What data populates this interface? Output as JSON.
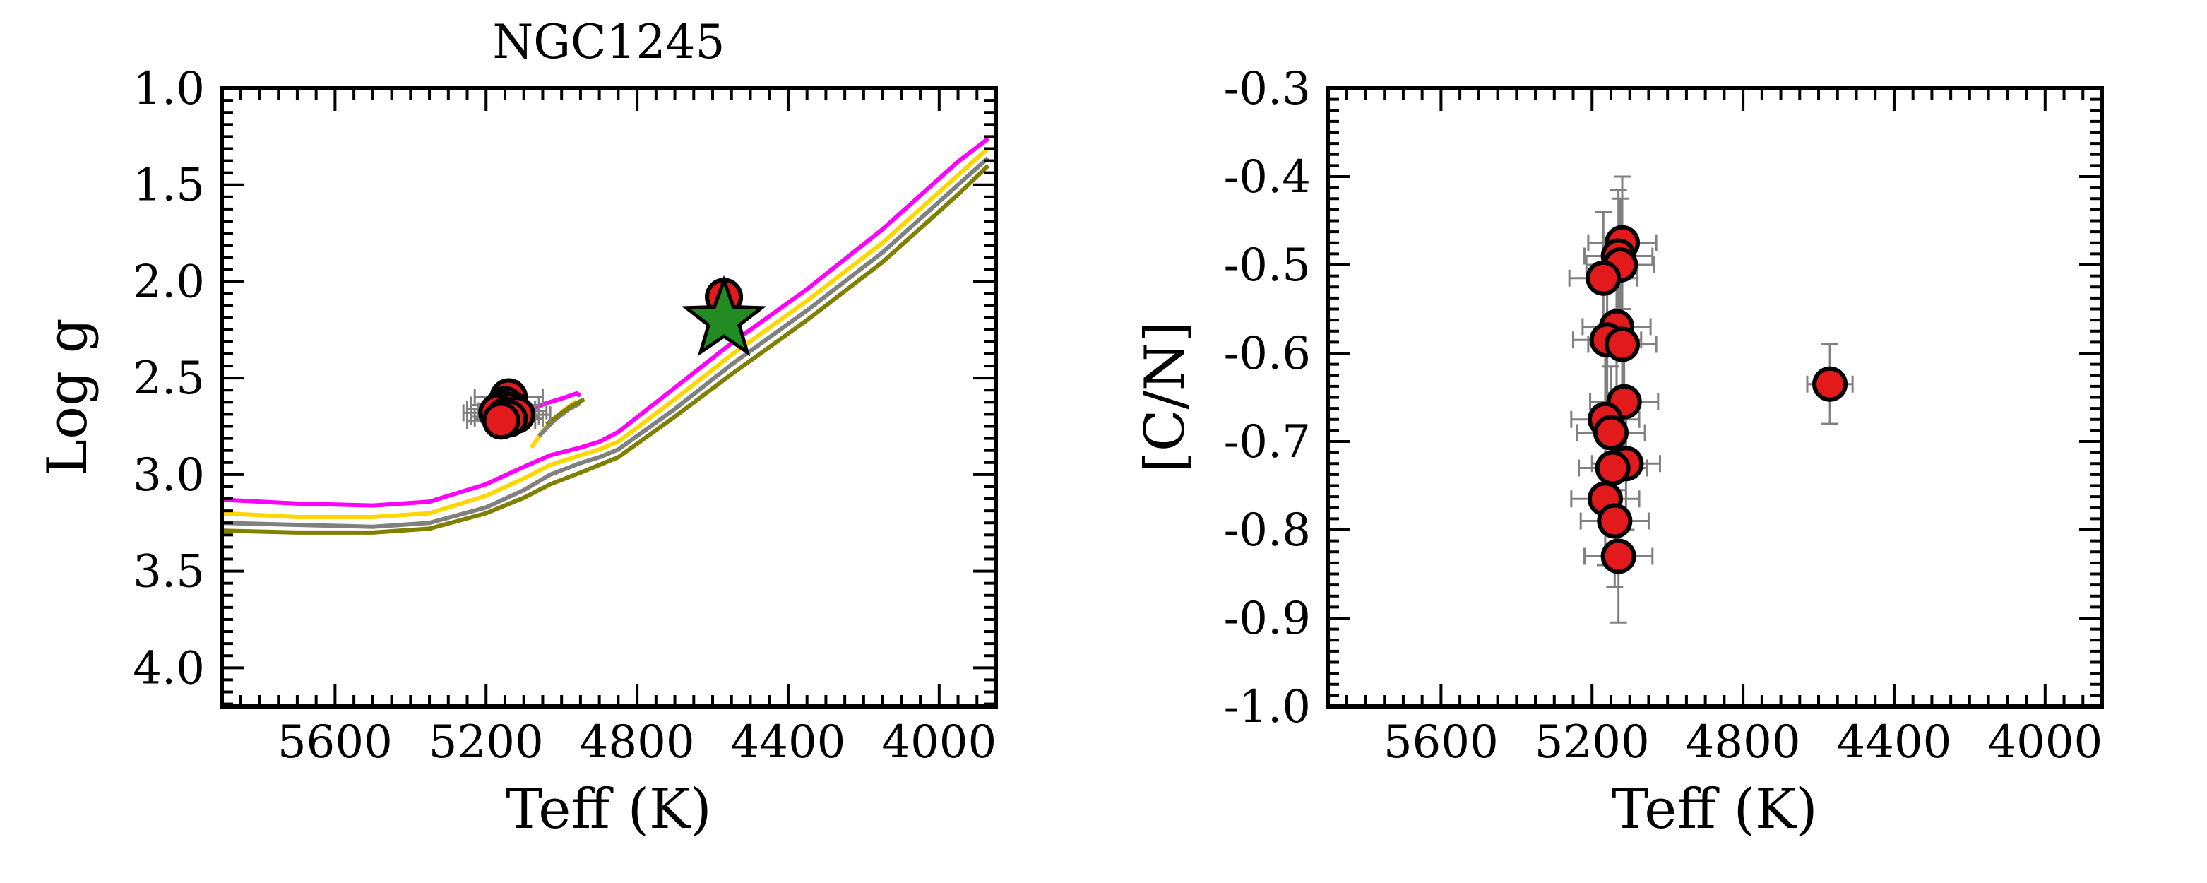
{
  "colors": {
    "background": "#ffffff",
    "axes": "#000000",
    "marker_fill": "#e31a1c",
    "marker_edge": "#000000",
    "errorbar": "#808080",
    "star_fill": "#228b22",
    "isochrone_magenta": "#ff00ff",
    "isochrone_gold": "#ffd700",
    "isochrone_gray": "#808080",
    "isochrone_olive": "#808000"
  },
  "chart_data": [
    {
      "type": "scatter",
      "title": "NGC1245",
      "xlabel": "Teff (K)",
      "ylabel": "Log g",
      "xlim": [
        5900,
        3850
      ],
      "ylim": [
        4.2,
        1.0
      ],
      "x_ticks": [
        5600,
        5200,
        4800,
        4400,
        4000
      ],
      "x_tick_labels": [
        "5600",
        "5200",
        "4800",
        "4400",
        "4000"
      ],
      "y_ticks": [
        1.0,
        1.5,
        2.0,
        2.5,
        3.0,
        3.5,
        4.0
      ],
      "y_tick_labels": [
        "1.0",
        "1.5",
        "2.0",
        "2.5",
        "3.0",
        "3.5",
        "4.0"
      ],
      "grid": false,
      "isochrones": [
        {
          "color": "magenta",
          "x": [
            5900,
            5700,
            5500,
            5350,
            5200,
            5100,
            5030,
            4950,
            4900,
            4850,
            4700,
            4550,
            4350,
            4150,
            3950,
            3870
          ],
          "y": [
            3.13,
            3.15,
            3.16,
            3.14,
            3.05,
            2.96,
            2.9,
            2.86,
            2.83,
            2.78,
            2.55,
            2.32,
            2.04,
            1.73,
            1.38,
            1.26
          ]
        },
        {
          "color": "gold",
          "x": [
            5900,
            5700,
            5500,
            5350,
            5200,
            5100,
            5030,
            4950,
            4900,
            4850,
            4700,
            4550,
            4350,
            4150,
            3950,
            3870
          ],
          "y": [
            3.2,
            3.22,
            3.22,
            3.2,
            3.11,
            3.02,
            2.95,
            2.9,
            2.87,
            2.83,
            2.61,
            2.38,
            2.1,
            1.8,
            1.45,
            1.31
          ]
        },
        {
          "color": "gray",
          "x": [
            5900,
            5700,
            5500,
            5350,
            5200,
            5100,
            5030,
            4950,
            4900,
            4850,
            4700,
            4550,
            4350,
            4150,
            3950,
            3870
          ],
          "y": [
            3.25,
            3.26,
            3.27,
            3.25,
            3.17,
            3.08,
            3.0,
            2.94,
            2.91,
            2.87,
            2.66,
            2.43,
            2.15,
            1.85,
            1.5,
            1.36
          ]
        },
        {
          "color": "olive",
          "x": [
            5900,
            5700,
            5500,
            5350,
            5200,
            5100,
            5030,
            4950,
            4900,
            4850,
            4700,
            4550,
            4350,
            4150,
            3950,
            3870
          ],
          "y": [
            3.29,
            3.3,
            3.3,
            3.28,
            3.2,
            3.12,
            3.05,
            2.99,
            2.95,
            2.91,
            2.7,
            2.48,
            2.2,
            1.9,
            1.55,
            1.4
          ]
        }
      ],
      "red_clump_loops": [
        {
          "color": "magenta",
          "x": [
            5090,
            5040,
            4990,
            4960,
            4950
          ],
          "y": [
            2.67,
            2.63,
            2.6,
            2.58,
            2.59
          ]
        },
        {
          "color": "gold",
          "x": [
            5080,
            5040,
            4990,
            4960
          ],
          "y": [
            2.86,
            2.75,
            2.66,
            2.62
          ]
        },
        {
          "color": "gray",
          "x": [
            5060,
            5020,
            4980,
            4950
          ],
          "y": [
            2.8,
            2.72,
            2.66,
            2.63
          ]
        },
        {
          "color": "olive",
          "x": [
            5040,
            5000,
            4970,
            4940
          ],
          "y": [
            2.74,
            2.68,
            2.64,
            2.61
          ]
        }
      ],
      "series": [
        {
          "marker": "circle",
          "points": [
            {
              "x": 5140,
              "y": 2.6,
              "xerr": 90,
              "yerr": 0.05
            },
            {
              "x": 5150,
              "y": 2.64,
              "xerr": 90,
              "yerr": 0.05
            },
            {
              "x": 5160,
              "y": 2.66,
              "xerr": 90,
              "yerr": 0.05
            },
            {
              "x": 5130,
              "y": 2.67,
              "xerr": 90,
              "yerr": 0.05
            },
            {
              "x": 5170,
              "y": 2.68,
              "xerr": 90,
              "yerr": 0.05
            },
            {
              "x": 5120,
              "y": 2.69,
              "xerr": 90,
              "yerr": 0.05
            },
            {
              "x": 5150,
              "y": 2.7,
              "xerr": 90,
              "yerr": 0.05
            },
            {
              "x": 5140,
              "y": 2.71,
              "xerr": 90,
              "yerr": 0.05
            },
            {
              "x": 5160,
              "y": 2.72,
              "xerr": 90,
              "yerr": 0.05
            },
            {
              "x": 4570,
              "y": 2.08,
              "xerr": 0,
              "yerr": 0
            }
          ]
        }
      ],
      "star": {
        "x": 4570,
        "y": 2.2
      }
    },
    {
      "type": "scatter",
      "title": "",
      "xlabel": "Teff (K)",
      "ylabel": "[C/N]",
      "xlim": [
        5900,
        3850
      ],
      "ylim": [
        -1.0,
        -0.3
      ],
      "x_ticks": [
        5600,
        5200,
        4800,
        4400,
        4000
      ],
      "x_tick_labels": [
        "5600",
        "5200",
        "4800",
        "4400",
        "4000"
      ],
      "y_ticks": [
        -1.0,
        -0.9,
        -0.8,
        -0.7,
        -0.6,
        -0.5,
        -0.4,
        -0.3
      ],
      "y_tick_labels": [
        "-1.0",
        "-0.9",
        "-0.8",
        "-0.7",
        "-0.6",
        "-0.5",
        "-0.4",
        "-0.3"
      ],
      "grid": false,
      "series": [
        {
          "marker": "circle",
          "points": [
            {
              "x": 5120,
              "y": -0.475,
              "xerr": 90,
              "yerr": 0.075
            },
            {
              "x": 5130,
              "y": -0.49,
              "xerr": 90,
              "yerr": 0.075
            },
            {
              "x": 5125,
              "y": -0.5,
              "xerr": 90,
              "yerr": 0.075
            },
            {
              "x": 5170,
              "y": -0.515,
              "xerr": 90,
              "yerr": 0.075
            },
            {
              "x": 5135,
              "y": -0.57,
              "xerr": 90,
              "yerr": 0.075
            },
            {
              "x": 5160,
              "y": -0.585,
              "xerr": 90,
              "yerr": 0.075
            },
            {
              "x": 5120,
              "y": -0.59,
              "xerr": 90,
              "yerr": 0.075
            },
            {
              "x": 5115,
              "y": -0.655,
              "xerr": 90,
              "yerr": 0.075
            },
            {
              "x": 5165,
              "y": -0.675,
              "xerr": 90,
              "yerr": 0.075
            },
            {
              "x": 5150,
              "y": -0.69,
              "xerr": 90,
              "yerr": 0.075
            },
            {
              "x": 5110,
              "y": -0.725,
              "xerr": 90,
              "yerr": 0.075
            },
            {
              "x": 5145,
              "y": -0.73,
              "xerr": 90,
              "yerr": 0.075
            },
            {
              "x": 5165,
              "y": -0.765,
              "xerr": 90,
              "yerr": 0.075
            },
            {
              "x": 5140,
              "y": -0.79,
              "xerr": 90,
              "yerr": 0.075
            },
            {
              "x": 5130,
              "y": -0.83,
              "xerr": 90,
              "yerr": 0.075
            },
            {
              "x": 4570,
              "y": -0.635,
              "xerr": 60,
              "yerr": 0.045
            }
          ]
        }
      ]
    }
  ]
}
